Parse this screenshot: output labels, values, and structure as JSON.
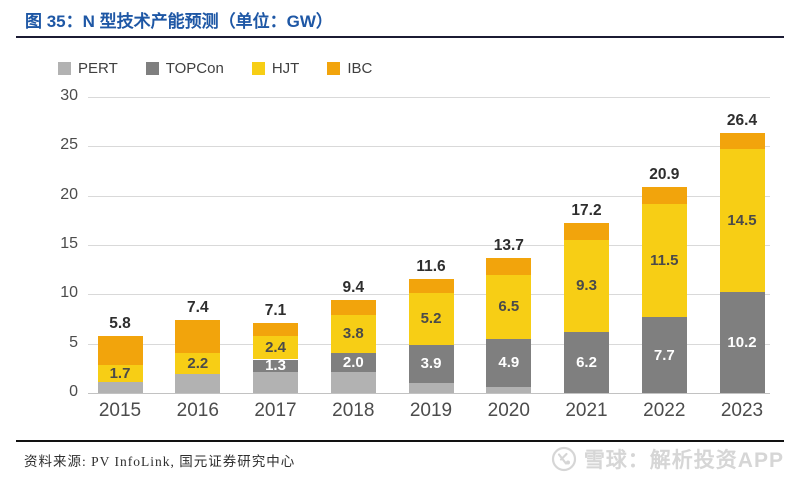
{
  "header": {
    "title": "图 35：N 型技术产能预测（单位：GW）"
  },
  "legend": [
    {
      "label": "PERT",
      "color": "#b2b2b2"
    },
    {
      "label": "TOPCon",
      "color": "#7f7f7f"
    },
    {
      "label": "HJT",
      "color": "#f7ce15"
    },
    {
      "label": "IBC",
      "color": "#f2a40c"
    }
  ],
  "chart_data": {
    "type": "bar",
    "stacked": true,
    "title": "N 型技术产能预测",
    "unit": "GW",
    "categories": [
      "2015",
      "2016",
      "2017",
      "2018",
      "2019",
      "2020",
      "2021",
      "2022",
      "2023"
    ],
    "series": [
      {
        "name": "PERT",
        "color": "#b2b2b2",
        "label_color": "#ffffff",
        "values": [
          1.1,
          1.9,
          2.1,
          2.1,
          1.0,
          0.6,
          0,
          0,
          0
        ],
        "labels": [
          null,
          null,
          null,
          null,
          null,
          null,
          null,
          null,
          null
        ]
      },
      {
        "name": "TOPCon",
        "color": "#7f7f7f",
        "label_color": "#ffffff",
        "values": [
          0,
          0,
          1.3,
          2.0,
          3.9,
          4.9,
          6.2,
          7.7,
          10.2
        ],
        "labels": [
          null,
          null,
          "1.3",
          "2.0",
          "3.9",
          "4.9",
          "6.2",
          "7.7",
          "10.2"
        ]
      },
      {
        "name": "HJT",
        "color": "#f7ce15",
        "label_color": "#4a4a4a",
        "values": [
          1.7,
          2.2,
          2.4,
          3.8,
          5.2,
          6.5,
          9.3,
          11.5,
          14.5
        ],
        "labels": [
          "1.7",
          "2.2",
          "2.4",
          "3.8",
          "5.2",
          "6.5",
          "9.3",
          "11.5",
          "14.5"
        ]
      },
      {
        "name": "IBC",
        "color": "#f2a40c",
        "label_color": null,
        "values": [
          3.0,
          3.3,
          1.3,
          1.5,
          1.5,
          1.7,
          1.7,
          1.7,
          1.7
        ],
        "labels": [
          null,
          null,
          null,
          null,
          null,
          null,
          null,
          null,
          null
        ]
      }
    ],
    "totals": [
      "5.8",
      "7.4",
      "7.1",
      "9.4",
      "11.6",
      "13.7",
      "17.2",
      "20.9",
      "26.4"
    ],
    "yticks": [
      0,
      5,
      10,
      15,
      20,
      25,
      30
    ],
    "ylim": [
      0,
      30
    ],
    "grid": true,
    "legend_position": "top-left"
  },
  "footer": {
    "source": "资料来源: PV InfoLink, 国元证券研究中心"
  },
  "watermark": {
    "icon": "xueqiu-snowball-icon",
    "text": "雪球：解析投资APP"
  }
}
